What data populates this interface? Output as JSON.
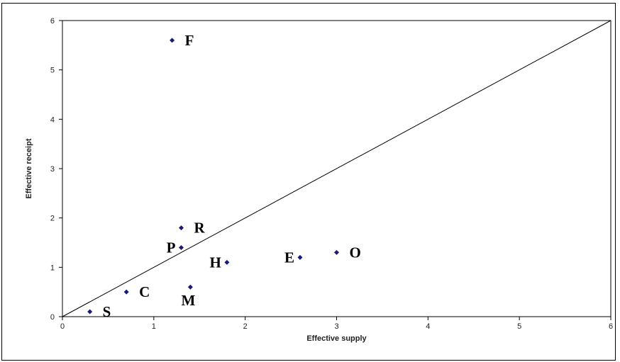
{
  "chart_data": {
    "type": "scatter",
    "title": "",
    "xlabel": "Effective supply",
    "ylabel": "Effective receipt",
    "xlim": [
      0,
      6
    ],
    "ylim": [
      0,
      6
    ],
    "xticks": [
      "0",
      "1",
      "2",
      "3",
      "4",
      "5",
      "6"
    ],
    "yticks": [
      "0",
      "1",
      "2",
      "3",
      "4",
      "5",
      "6"
    ],
    "grid": false,
    "legend": "none",
    "reference_line": {
      "from": [
        0,
        0
      ],
      "to": [
        6,
        6
      ]
    },
    "marker_color": "#1a1a7a",
    "points": [
      {
        "label": "F",
        "x": 1.2,
        "y": 5.6,
        "label_side": "right"
      },
      {
        "label": "R",
        "x": 1.3,
        "y": 1.8,
        "label_side": "right"
      },
      {
        "label": "P",
        "x": 1.3,
        "y": 1.4,
        "label_side": "left"
      },
      {
        "label": "H",
        "x": 1.8,
        "y": 1.1,
        "label_side": "left"
      },
      {
        "label": "E",
        "x": 2.6,
        "y": 1.2,
        "label_side": "left"
      },
      {
        "label": "O",
        "x": 3.0,
        "y": 1.3,
        "label_side": "right"
      },
      {
        "label": "C",
        "x": 0.7,
        "y": 0.5,
        "label_side": "right"
      },
      {
        "label": "M",
        "x": 1.4,
        "y": 0.6,
        "label_side": "below"
      },
      {
        "label": "S",
        "x": 0.3,
        "y": 0.1,
        "label_side": "right"
      }
    ]
  }
}
